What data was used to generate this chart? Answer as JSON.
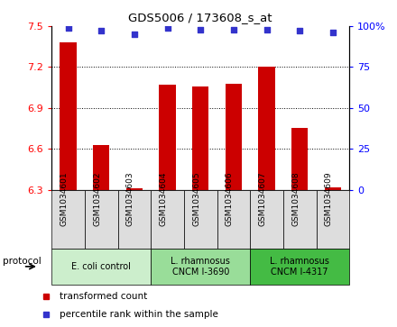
{
  "title": "GDS5006 / 173608_s_at",
  "samples": [
    "GSM1034601",
    "GSM1034602",
    "GSM1034603",
    "GSM1034604",
    "GSM1034605",
    "GSM1034606",
    "GSM1034607",
    "GSM1034608",
    "GSM1034609"
  ],
  "bar_values": [
    7.38,
    6.63,
    6.31,
    7.07,
    7.06,
    7.08,
    7.2,
    6.75,
    6.32
  ],
  "percentile_values": [
    99,
    97,
    95,
    99,
    98,
    98,
    98,
    97,
    96
  ],
  "ylim_left": [
    6.3,
    7.5
  ],
  "ylim_right": [
    0,
    100
  ],
  "yticks_left": [
    6.3,
    6.6,
    6.9,
    7.2,
    7.5
  ],
  "yticks_right": [
    0,
    25,
    50,
    75,
    100
  ],
  "bar_color": "#cc0000",
  "dot_color": "#3333cc",
  "grid_color": "#000000",
  "protocol_groups": [
    {
      "label": "E. coli control",
      "indices": [
        0,
        1,
        2
      ],
      "color": "#cceecc"
    },
    {
      "label": "L. rhamnosus\nCNCM I-3690",
      "indices": [
        3,
        4,
        5
      ],
      "color": "#99dd99"
    },
    {
      "label": "L. rhamnosus\nCNCM I-4317",
      "indices": [
        6,
        7,
        8
      ],
      "color": "#44bb44"
    }
  ],
  "legend_items": [
    {
      "label": "transformed count",
      "color": "#cc0000"
    },
    {
      "label": "percentile rank within the sample",
      "color": "#3333cc"
    }
  ],
  "bg_color": "#ffffff",
  "sample_box_color": "#dddddd",
  "bar_width": 0.5,
  "figsize": [
    4.4,
    3.63
  ],
  "dpi": 100
}
